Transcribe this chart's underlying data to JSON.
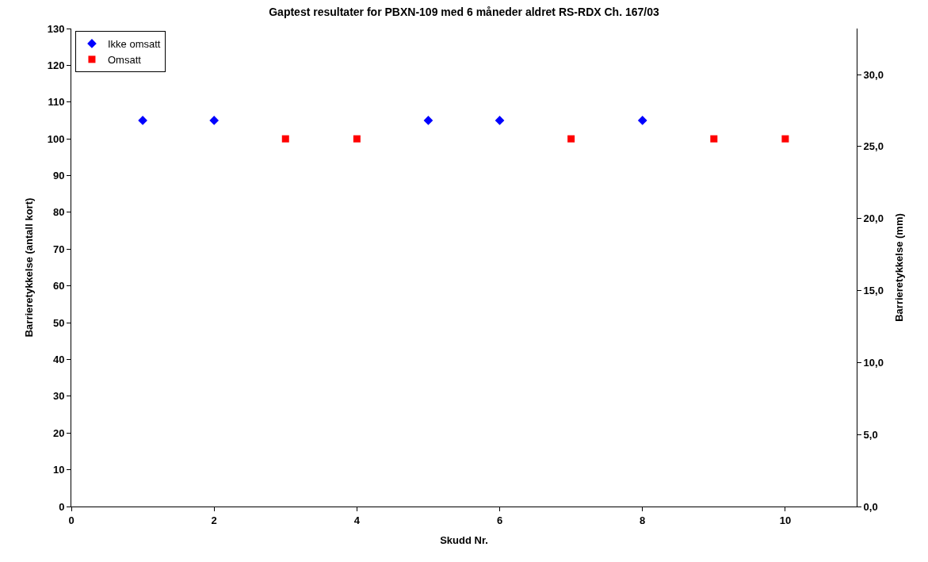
{
  "chart_data": {
    "type": "scatter",
    "title": "Gaptest resultater for PBXN-109 med 6 måneder aldret RS-RDX Ch. 167/03",
    "xlabel": "Skudd Nr.",
    "ylabel": "Barrieretykkelse (antall kort)",
    "y2label": "Barrieretykkelse (mm)",
    "xlim": [
      0,
      11
    ],
    "xticks": [
      0,
      2,
      4,
      6,
      8,
      10
    ],
    "ylim": [
      0,
      130
    ],
    "yticks": [
      0,
      10,
      20,
      30,
      40,
      50,
      60,
      70,
      80,
      90,
      100,
      110,
      120,
      130
    ],
    "y2lim": [
      0,
      33.2
    ],
    "y2ticks": [
      {
        "value": 0,
        "label": "0,0"
      },
      {
        "value": 5,
        "label": "5,0"
      },
      {
        "value": 10,
        "label": "10,0"
      },
      {
        "value": 15,
        "label": "15,0"
      },
      {
        "value": 20,
        "label": "20,0"
      },
      {
        "value": 25,
        "label": "25,0"
      },
      {
        "value": 30,
        "label": "30,0"
      }
    ],
    "legend": "top left",
    "series": [
      {
        "name": "Ikke omsatt",
        "color": "#0000ff",
        "marker": "diamond",
        "x": [
          1,
          2,
          5,
          6,
          8
        ],
        "values": [
          105,
          105,
          105,
          105,
          105
        ]
      },
      {
        "name": "Omsatt",
        "color": "#ff0000",
        "marker": "square",
        "x": [
          3,
          4,
          7,
          9,
          10
        ],
        "values": [
          100,
          100,
          100,
          100,
          100
        ]
      }
    ]
  }
}
